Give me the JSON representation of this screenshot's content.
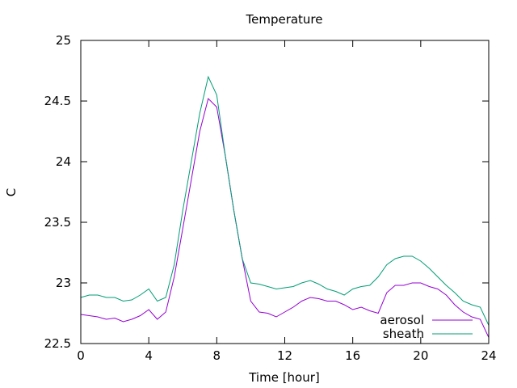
{
  "chart_data": {
    "type": "line",
    "title": "Temperature",
    "xlabel": "Time [hour]",
    "ylabel": "C",
    "xlim": [
      0,
      24
    ],
    "ylim": [
      22.5,
      25
    ],
    "x_ticks": [
      0,
      4,
      8,
      12,
      16,
      20,
      24
    ],
    "y_ticks": [
      22.5,
      23,
      23.5,
      24,
      24.5,
      25
    ],
    "grid": false,
    "legend_position": "bottom-right",
    "x": [
      0,
      0.5,
      1,
      1.5,
      2,
      2.5,
      3,
      3.5,
      4,
      4.5,
      5,
      5.5,
      6,
      6.5,
      7,
      7.5,
      8,
      8.5,
      9,
      9.5,
      10,
      10.5,
      11,
      11.5,
      12,
      12.5,
      13,
      13.5,
      14,
      14.5,
      15,
      15.5,
      16,
      16.5,
      17,
      17.5,
      18,
      18.5,
      19,
      19.5,
      20,
      20.5,
      21,
      21.5,
      22,
      22.5,
      23,
      23.5,
      24
    ],
    "series": [
      {
        "name": "aerosol",
        "color": "#9400d3",
        "values": [
          22.74,
          22.73,
          22.72,
          22.7,
          22.71,
          22.68,
          22.7,
          22.73,
          22.78,
          22.7,
          22.76,
          23.05,
          23.45,
          23.85,
          24.25,
          24.52,
          24.45,
          24.05,
          23.6,
          23.2,
          22.85,
          22.76,
          22.75,
          22.72,
          22.76,
          22.8,
          22.85,
          22.88,
          22.87,
          22.85,
          22.85,
          22.82,
          22.78,
          22.8,
          22.77,
          22.75,
          22.92,
          22.98,
          22.98,
          23.0,
          23.0,
          22.97,
          22.95,
          22.9,
          22.82,
          22.76,
          22.72,
          22.7,
          22.55
        ]
      },
      {
        "name": "sheath",
        "color": "#009e73",
        "values": [
          22.88,
          22.9,
          22.9,
          22.88,
          22.88,
          22.85,
          22.86,
          22.9,
          22.95,
          22.85,
          22.88,
          23.15,
          23.6,
          24.0,
          24.4,
          24.7,
          24.55,
          24.05,
          23.6,
          23.2,
          23.0,
          22.99,
          22.97,
          22.95,
          22.96,
          22.97,
          23.0,
          23.02,
          22.99,
          22.95,
          22.93,
          22.9,
          22.95,
          22.97,
          22.98,
          23.05,
          23.15,
          23.2,
          23.22,
          23.22,
          23.18,
          23.12,
          23.05,
          22.98,
          22.92,
          22.85,
          22.82,
          22.8,
          22.65
        ]
      }
    ]
  }
}
